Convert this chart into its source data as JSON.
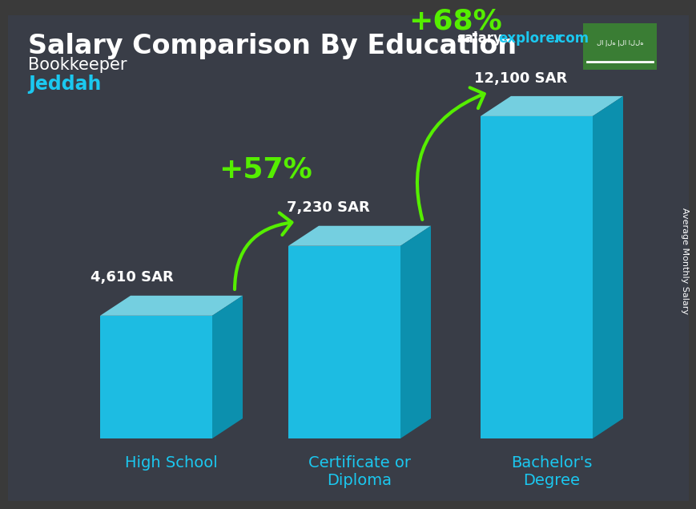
{
  "title": "Salary Comparison By Education",
  "subtitle_role": "Bookkeeper",
  "subtitle_city": "Jeddah",
  "ylabel": "Average Monthly Salary",
  "site_salary": "salary",
  "site_explorer": "explorer",
  "site_dot_com": ".com",
  "categories": [
    "High School",
    "Certificate or\nDiploma",
    "Bachelor's\nDegree"
  ],
  "values": [
    4610,
    7230,
    12100
  ],
  "value_labels": [
    "4,610 SAR",
    "7,230 SAR",
    "12,100 SAR"
  ],
  "pct_labels": [
    "+57%",
    "+68%"
  ],
  "bar_front_color": "#1BC8F0",
  "bar_top_color": "#7ADDEE",
  "bar_side_color": "#0898B8",
  "bg_color": "#3a3a3a",
  "text_white": "#ffffff",
  "text_cyan": "#1BC8F0",
  "text_green": "#88FF00",
  "arrow_green": "#55EE00",
  "flag_green": "#3a7d34",
  "title_fs": 24,
  "role_fs": 15,
  "city_fs": 17,
  "val_fs": 13,
  "pct_fs": 26,
  "cat_fs": 14,
  "site_fs": 12,
  "ylabel_fs": 8
}
